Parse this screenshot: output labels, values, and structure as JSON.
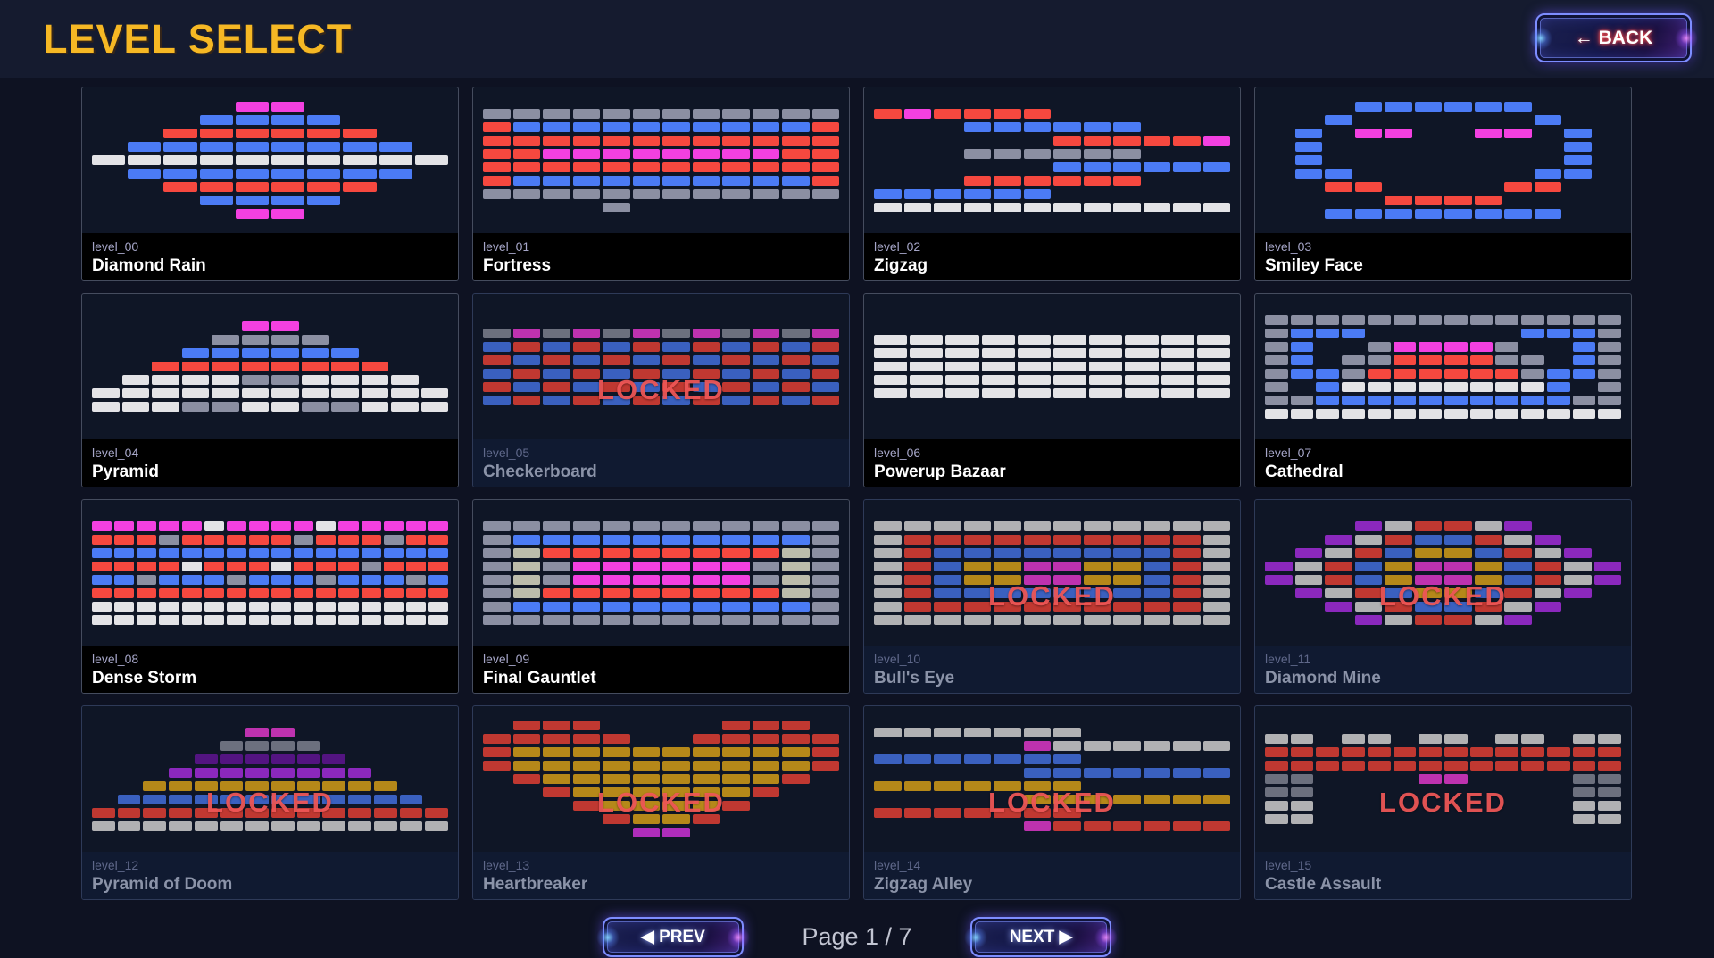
{
  "header": {
    "title": "LEVEL SELECT",
    "back_label": "← BACK"
  },
  "footer": {
    "prev_label": "◀ PREV",
    "next_label": "NEXT ▶",
    "page_label": "Page 1 / 7"
  },
  "locked_label": "LOCKED",
  "palette": {
    "M": "#f340e0",
    "B": "#4b7bf5",
    "R": "#f6483f",
    "S": "#e3e3e6",
    "G": "#8b8fa2",
    "O": "#e8ae20",
    "P": "#b233f2",
    "D": "#6b19a5",
    "K": "#bcbcab",
    "V": "#e03af0"
  },
  "levels": [
    {
      "id": "level_00",
      "name": "Diamond Rain",
      "locked": false,
      "cols": 10,
      "rows": [
        "....MM....",
        "...BBBB...",
        "..RRRRRR..",
        ".BBBBBBBB.",
        "SSSSSSSSSS",
        ".BBBBBBBB.",
        "..RRRRRR..",
        "...BBBB...",
        "....MM...."
      ]
    },
    {
      "id": "level_01",
      "name": "Fortress",
      "locked": false,
      "cols": 12,
      "rows": [
        "GGGGGGGGGGGG",
        "RBBBBBBBBBBR",
        "RRRRRRRRRRRR",
        "RRMMMMMMMMRR",
        "RRRRRRRRRRRR",
        "RBBBBBBBBBBR",
        "GGGGGGGGGGGG",
        "....G......."
      ]
    },
    {
      "id": "level_02",
      "name": "Zigzag",
      "locked": false,
      "cols": 12,
      "rows": [
        "RMRRRR......",
        "...BBBBBB...",
        "......RRRRRM",
        "...GGGGGG...",
        "......BBBBBB",
        "...RRRRRR...",
        "BBBBBB......",
        "SSSSSSSSSSSS"
      ]
    },
    {
      "id": "level_03",
      "name": "Smiley Face",
      "locked": false,
      "cols": 12,
      "rows": [
        "...BBBBBB...",
        "..B......B..",
        ".B.MM..MM.B.",
        ".B........B.",
        ".B........B.",
        ".BB......BB.",
        "..RR....RR..",
        "....RRRR....",
        "..BBBBBBBB.."
      ]
    },
    {
      "id": "level_04",
      "name": "Pyramid",
      "locked": false,
      "cols": 12,
      "rows": [
        ".....MM.....",
        "....GGGG....",
        "...BBBBBB...",
        "..RRRRRRRR..",
        ".SSSSGGSSSS.",
        "SSSSSSSSSSSS",
        "SSSGGSSGGSSS"
      ]
    },
    {
      "id": "level_05",
      "name": "Checkerboard",
      "locked": true,
      "cols": 12,
      "rows": [
        "GMGMGMGMGMGM",
        "BRBRBRBRBRBR",
        "RBRBRBRBRBRB",
        "BRBRBRBRBRBR",
        "RBRBRBRBRBRB",
        "BRBRBRBRBRBR"
      ]
    },
    {
      "id": "level_06",
      "name": "Powerup Bazaar",
      "locked": false,
      "cols": 10,
      "rows": [
        "SSSSSSSSSS",
        "SSSSSSSSSS",
        "SSSSSSSSSS",
        "SSSSSSSSSS",
        "SSSSSSSSSS"
      ]
    },
    {
      "id": "level_07",
      "name": "Cathedral",
      "locked": false,
      "cols": 14,
      "rows": [
        "GGGGGGGGGGGGGG",
        "GBBB......BBBG",
        "GB..GMMMMG..BG",
        "GB.GGRRRRGG.BG",
        "GBBGRRRRRRGBBG",
        "G.BSSSSSSSSB.G",
        "GGBBBBBBBBBBGG",
        "SSSSSSSSSSSSSS"
      ]
    },
    {
      "id": "level_08",
      "name": "Dense Storm",
      "locked": false,
      "cols": 16,
      "rows": [
        "MMMMMSMMMMSMMMMM",
        "RRRGRRRRRGRRRGRR",
        "BBBBBBBBBBBBBBBB",
        "RRRRSRRRSRRRGRRR",
        "BBGBBBGBBBGBBBGB",
        "RRRRRRRRRRRRRRRR",
        "SSSSSSSSSSSSSSSS",
        "SSSSSSSSSSSSSSSS"
      ]
    },
    {
      "id": "level_09",
      "name": "Final Gauntlet",
      "locked": false,
      "cols": 12,
      "rows": [
        "GGGGGGGGGGGG",
        "GBBBBBBBBBBG",
        "GKRRRRRRRRKG",
        "GKGMMMMMMGKG",
        "GKGMMMMMMGKG",
        "GKRRRRRRRRKG",
        "GBBBBBBBBBBG",
        "GGGGGGGGGGGG"
      ]
    },
    {
      "id": "level_10",
      "name": "Bull's Eye",
      "locked": true,
      "cols": 12,
      "rows": [
        "SSSSSSSSSSSS",
        "SRRRRRRRRRRS",
        "SRBBBBBBBBRS",
        "SRBOOMMOOBRS",
        "SRBOOMMOOBRS",
        "SRBBBBBBBBRS",
        "SRRRRRRRRRRS",
        "SSSSSSSSSSSS"
      ]
    },
    {
      "id": "level_11",
      "name": "Diamond Mine",
      "locked": true,
      "cols": 12,
      "rows": [
        "...PSRRSP...",
        "..PSRBBRSP..",
        ".PSRBOOBRSP.",
        "PSRBOMMOBRSP",
        "PSRBOMMOBRSP",
        ".PSRBOOBRSP.",
        "..PSRBBRSP..",
        "...PSRRSP..."
      ]
    },
    {
      "id": "level_12",
      "name": "Pyramid of Doom",
      "locked": true,
      "cols": 14,
      "rows": [
        "......MM......",
        ".....GGGG.....",
        "....DDDDDD....",
        "...PPPPPPPP...",
        "..OOOOOOOOOO..",
        ".BBBBBBBBBBBB.",
        "RRRRRRRRRRRRRR",
        "SSSSSSSSSSSSSS"
      ]
    },
    {
      "id": "level_13",
      "name": "Heartbreaker",
      "locked": true,
      "cols": 12,
      "rows": [
        ".RRR....RRR.",
        "RRRRR..RRRRR",
        "ROOOOOOOOOOR",
        "ROOOOOOOOOOR",
        ".ROOOOOOOOR.",
        "..ROOOOOOR..",
        "...ROOOOR...",
        "....ROOR....",
        ".....VV....."
      ]
    },
    {
      "id": "level_14",
      "name": "Zigzag Alley",
      "locked": true,
      "cols": 12,
      "rows": [
        "SSSSSSS.....",
        ".....MSSSSSS",
        "BBBBBBB.....",
        ".....BBBBBBB",
        "OOOOOOO.....",
        ".....OOOOOOO",
        "RRRRRRR.....",
        ".....MRRRRRR"
      ]
    },
    {
      "id": "level_15",
      "name": "Castle Assault",
      "locked": true,
      "cols": 14,
      "rows": [
        "SS.SS.SS.SS.SS",
        "RRRRRRRRRRRRRR",
        "RRRRRRRRRRRRRR",
        "GG....MM....GG",
        "GG..........GG",
        "SS..........SS",
        "SS..........SS"
      ]
    }
  ]
}
